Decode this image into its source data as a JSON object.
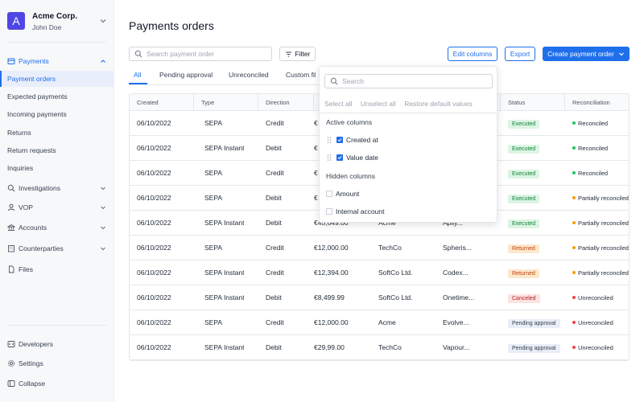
{
  "org": {
    "logo_letter": "A",
    "name": "Acme Corp.",
    "user": "John Doe"
  },
  "sidebar": {
    "section": "Payments",
    "payments_items": [
      "Payment orders",
      "Expected payments",
      "Incoming payments",
      "Returns",
      "Return requests",
      "Inquiries"
    ],
    "groups": [
      "Investigations",
      "VOP",
      "Accounts",
      "Counterparties",
      "Files"
    ],
    "footer": [
      "Developers",
      "Settings",
      "Collapse"
    ]
  },
  "page": {
    "title": "Payments orders"
  },
  "toolbar": {
    "search_placeholder": "Search payment order",
    "filter_label": "Filter",
    "edit_columns_label": "Edit columns",
    "export_label": "Export",
    "create_label": "Create payment order"
  },
  "tabs": [
    "All",
    "Pending approval",
    "Unreconciled",
    "Custom filt"
  ],
  "table": {
    "headers": [
      "Created",
      "Type",
      "Direction",
      "A",
      "",
      "",
      "Status",
      "Reconciliation"
    ],
    "rows": [
      {
        "created": "06/10/2022",
        "type": "SEPA",
        "direction": "Credit",
        "amount": "€",
        "counterparty": "",
        "description": "",
        "status": "Executed",
        "recon": "Reconciled"
      },
      {
        "created": "06/10/2022",
        "type": "SEPA Instant",
        "direction": "Debit",
        "amount": "€",
        "counterparty": "",
        "description": "",
        "status": "Executed",
        "recon": "Reconciled"
      },
      {
        "created": "06/10/2022",
        "type": "SEPA",
        "direction": "Credit",
        "amount": "€",
        "counterparty": "",
        "description": "",
        "status": "Executed",
        "recon": "Reconciled"
      },
      {
        "created": "06/10/2022",
        "type": "SEPA",
        "direction": "Debit",
        "amount": "€",
        "counterparty": "",
        "description": "",
        "status": "Executed",
        "recon": "Partially reconciled"
      },
      {
        "created": "06/10/2022",
        "type": "SEPA Instant",
        "direction": "Debit",
        "amount": "€45,649.00",
        "counterparty": "Acme",
        "description": "Apliy...",
        "status": "Executed",
        "recon": "Partially reconciled"
      },
      {
        "created": "06/10/2022",
        "type": "SEPA",
        "direction": "Credit",
        "amount": "€12,000.00",
        "counterparty": "TechCo",
        "description": "Spheris...",
        "status": "Returned",
        "recon": "Partially reconciled"
      },
      {
        "created": "06/10/2022",
        "type": "SEPA Instant",
        "direction": "Credit",
        "amount": "€12,394.00",
        "counterparty": "SoftCo Ltd.",
        "description": "Codex...",
        "status": "Returned",
        "recon": "Partially reconciled"
      },
      {
        "created": "06/10/2022",
        "type": "SEPA Instant",
        "direction": "Debit",
        "amount": "€8,499.99",
        "counterparty": "SoftCo Ltd.",
        "description": "Onetime...",
        "status": "Canceled",
        "recon": "Unreconciled"
      },
      {
        "created": "06/10/2022",
        "type": "SEPA",
        "direction": "Credit",
        "amount": "€12,000.00",
        "counterparty": "Acme",
        "description": "Evolve...",
        "status": "Pending approval",
        "recon": "Unreconciled"
      },
      {
        "created": "06/10/2022",
        "type": "SEPA Instant",
        "direction": "Debit",
        "amount": "€29,99.00",
        "counterparty": "TechCo",
        "description": "Vapour...",
        "status": "Pending approval",
        "recon": "Unreconciled"
      }
    ]
  },
  "columns_menu": {
    "search_placeholder": "Search",
    "actions": [
      "Select all",
      "Unselect all",
      "Restore default values"
    ],
    "active_heading": "Active columns",
    "active": [
      "Created at",
      "Value date"
    ],
    "hidden_heading": "Hidden columns",
    "hidden": [
      "Amount",
      "Internal account"
    ]
  },
  "colors": {
    "accent": "#1f6feb",
    "logo": "#4f46e5",
    "reconciled": "#22c55e",
    "partial": "#f59e0b",
    "unreconciled": "#ef4444"
  }
}
